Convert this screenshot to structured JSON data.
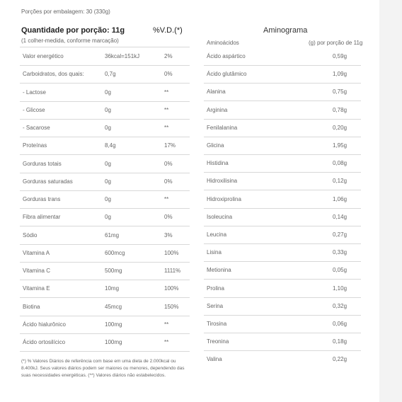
{
  "serving_info": "Porções por embalagem: 30 (330g)",
  "nutrition": {
    "header": {
      "title": "Quantidade por porção: 11g",
      "dv": "%V.D.(*)",
      "subtitle": "(1 colher-medida, conforme marcação)"
    },
    "rows": [
      [
        "Valor energético",
        "36kcal=151kJ",
        "2%"
      ],
      [
        "Carboidratos, dos quais:",
        "0,7g",
        "0%"
      ],
      [
        "- Lactose",
        "0g",
        "**"
      ],
      [
        "- Glicose",
        "0g",
        "**"
      ],
      [
        "- Sacarose",
        "0g",
        "**"
      ],
      [
        "Proteínas",
        "8,4g",
        "17%"
      ],
      [
        "Gorduras totais",
        "0g",
        "0%"
      ],
      [
        "Gorduras saturadas",
        "0g",
        "0%"
      ],
      [
        "Gorduras trans",
        "0g",
        "**"
      ],
      [
        "Fibra alimentar",
        "0g",
        "0%"
      ],
      [
        "Sódio",
        "61mg",
        "3%"
      ],
      [
        "Vitamina A",
        "600mcg",
        "100%"
      ],
      [
        "Vitamina C",
        "500mg",
        "1111%"
      ],
      [
        "Vitamina E",
        "10mg",
        "100%"
      ],
      [
        "Biotina",
        "45mcg",
        "150%"
      ],
      [
        "Ácido hialurônico",
        "100mg",
        "**"
      ],
      [
        "Ácido ortosilícico",
        "100mg",
        "**"
      ]
    ],
    "footnote": "(*) % Valores Diários de referência com base em uma dieta de 2.000kcal ou 8.400kJ. Seus valores diários podem ser maiores ou menores, dependendo das suas necessidades energéticas. (**) Valores diários não estabelecidos."
  },
  "aminogram": {
    "title": "Aminograma",
    "header": {
      "name": "Aminoácidos",
      "amount": "(g) por porção de 11g"
    },
    "rows": [
      [
        "Ácido aspártico",
        "0,59g"
      ],
      [
        "Ácido glutâmico",
        "1,09g"
      ],
      [
        "Alanina",
        "0,75g"
      ],
      [
        "Arginina",
        "0,78g"
      ],
      [
        "Fenilalanina",
        "0,20g"
      ],
      [
        "Glicina",
        "1,95g"
      ],
      [
        "Histidina",
        "0,08g"
      ],
      [
        "Hidroxilisina",
        "0,12g"
      ],
      [
        "Hidroxiprolina",
        "1,06g"
      ],
      [
        "Isoleucina",
        "0,14g"
      ],
      [
        "Leucina",
        "0,27g"
      ],
      [
        "Lisina",
        "0,33g"
      ],
      [
        "Metionina",
        "0,05g"
      ],
      [
        "Prolina",
        "1,10g"
      ],
      [
        "Serina",
        "0,32g"
      ],
      [
        "Tirosina",
        "0,06g"
      ],
      [
        "Treonina",
        "0,18g"
      ],
      [
        "Valina",
        "0,22g"
      ]
    ]
  }
}
